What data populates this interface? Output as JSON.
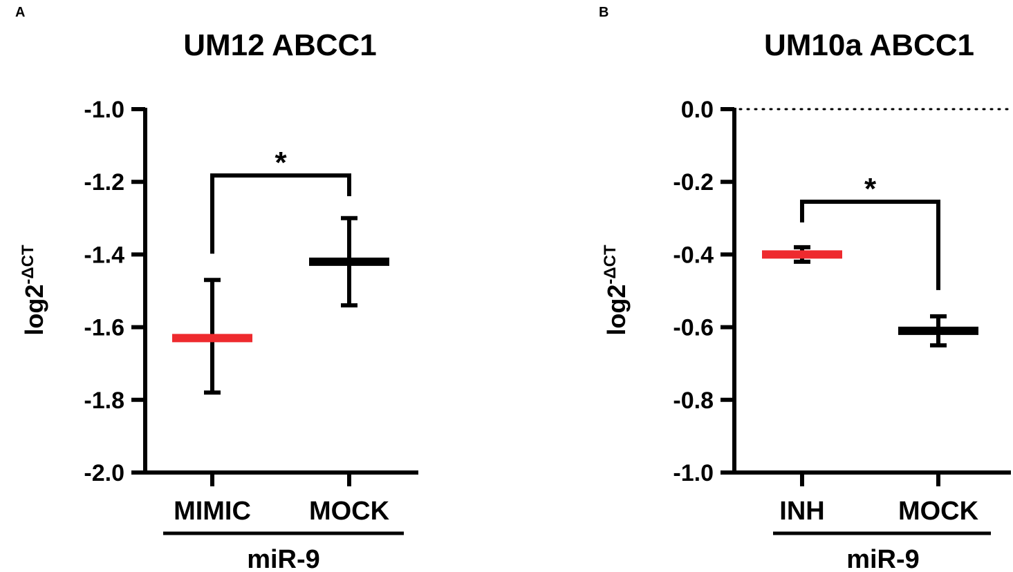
{
  "colors": {
    "mimic": "#ee2a2e",
    "inh": "#ee2a2e",
    "mock": "#000000",
    "axis": "#000000"
  },
  "chart_data": [
    {
      "type": "scatter",
      "panel_label": "A",
      "title": "UM12 ABCC1",
      "ylabel": "log2",
      "ylabel_superscript": "-ΔCT",
      "xlabel": "miR-9",
      "categories": [
        "MIMIC",
        "MOCK"
      ],
      "ylim": [
        -2.0,
        -1.0
      ],
      "yticks": [
        -2.0,
        -1.8,
        -1.6,
        -1.4,
        -1.2,
        -1.0
      ],
      "ytick_labels": [
        "-2.0",
        "-1.8",
        "-1.6",
        "-1.4",
        "-1.2",
        "-1.0"
      ],
      "reference_line": null,
      "grid": false,
      "series": [
        {
          "category": "MIMIC",
          "mean": -1.63,
          "err_low": -1.78,
          "err_high": -1.47,
          "color": "#ee2a2e"
        },
        {
          "category": "MOCK",
          "mean": -1.42,
          "err_low": -1.54,
          "err_high": -1.3,
          "color": "#000000"
        }
      ],
      "significance": {
        "label": "*",
        "from": "MIMIC",
        "to": "MOCK"
      }
    },
    {
      "type": "scatter",
      "panel_label": "B",
      "title": "UM10a ABCC1",
      "ylabel": "log2",
      "ylabel_superscript": "-ΔCT",
      "xlabel": "miR-9",
      "categories": [
        "INH",
        "MOCK"
      ],
      "ylim": [
        -1.0,
        0.0
      ],
      "yticks": [
        -1.0,
        -0.8,
        -0.6,
        -0.4,
        -0.2,
        0.0
      ],
      "ytick_labels": [
        "-1.0",
        "-0.8",
        "-0.6",
        "-0.4",
        "-0.2",
        "0.0"
      ],
      "reference_line": 0.0,
      "grid": false,
      "series": [
        {
          "category": "INH",
          "mean": -0.4,
          "err_low": -0.42,
          "err_high": -0.38,
          "color": "#ee2a2e"
        },
        {
          "category": "MOCK",
          "mean": -0.61,
          "err_low": -0.65,
          "err_high": -0.57,
          "color": "#000000"
        }
      ],
      "significance": {
        "label": "*",
        "from": "INH",
        "to": "MOCK"
      }
    }
  ]
}
